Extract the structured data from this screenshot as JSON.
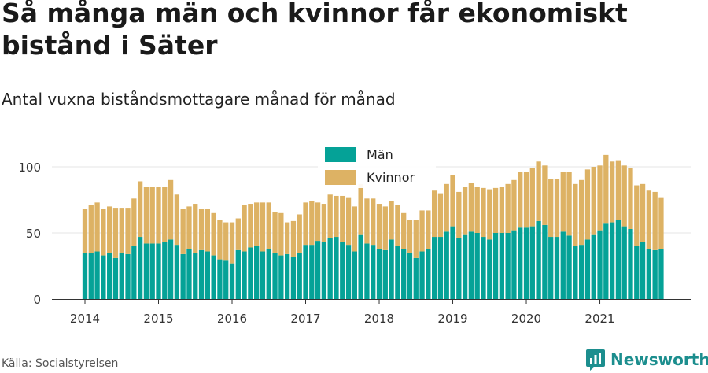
{
  "title": "Så många män och kvinnor får ekonomiskt bistånd i Säter",
  "subtitle": "Antal vuxna biståndsmottagare månad för månad",
  "source": "Källa: Socialstyrelsen",
  "brand": {
    "name": "Newsworthy",
    "icon": "newsworthy-logo-icon"
  },
  "colors": {
    "men": "#05a297",
    "women": "#ddb264",
    "grid": "#e6e6e6",
    "axis": "#333333"
  },
  "chart_data": {
    "type": "bar",
    "stacked": true,
    "legend_position": "top-center",
    "grid": true,
    "ylim": [
      0,
      115
    ],
    "yticks": [
      0,
      50,
      100
    ],
    "xticks": [
      "2014",
      "2015",
      "2016",
      "2017",
      "2018",
      "2019",
      "2020",
      "2021"
    ],
    "start": "2014-01",
    "series": [
      {
        "name": "Män",
        "values": [
          35,
          35,
          36,
          33,
          35,
          31,
          35,
          34,
          40,
          47,
          42,
          42,
          42,
          43,
          45,
          41,
          34,
          38,
          35,
          37,
          36,
          33,
          30,
          29,
          27,
          37,
          36,
          39,
          40,
          36,
          38,
          35,
          33,
          34,
          32,
          35,
          41,
          41,
          44,
          43,
          46,
          47,
          43,
          41,
          36,
          49,
          42,
          41,
          38,
          37,
          45,
          40,
          38,
          35,
          31,
          36,
          38,
          47,
          47,
          51,
          55,
          46,
          49,
          51,
          50,
          47,
          45,
          50,
          50,
          50,
          52,
          54,
          54,
          55,
          59,
          56,
          47,
          47,
          51,
          48,
          40,
          41,
          45,
          49,
          52,
          57,
          58,
          60,
          55,
          53,
          40,
          43,
          38,
          37,
          38
        ]
      },
      {
        "name": "Kvinnor",
        "values": [
          33,
          36,
          37,
          35,
          35,
          38,
          34,
          35,
          36,
          42,
          43,
          43,
          43,
          42,
          45,
          38,
          34,
          32,
          37,
          31,
          32,
          32,
          30,
          29,
          31,
          24,
          35,
          33,
          33,
          37,
          35,
          31,
          32,
          24,
          27,
          29,
          32,
          33,
          29,
          29,
          33,
          31,
          35,
          36,
          34,
          38,
          34,
          35,
          34,
          33,
          29,
          31,
          27,
          25,
          29,
          31,
          29,
          35,
          33,
          36,
          39,
          35,
          36,
          37,
          35,
          37,
          38,
          34,
          35,
          37,
          38,
          42,
          42,
          44,
          45,
          45,
          44,
          44,
          45,
          48,
          47,
          49,
          53,
          51,
          49,
          52,
          46,
          45,
          46,
          46,
          46,
          44,
          44,
          44,
          39
        ]
      }
    ]
  }
}
